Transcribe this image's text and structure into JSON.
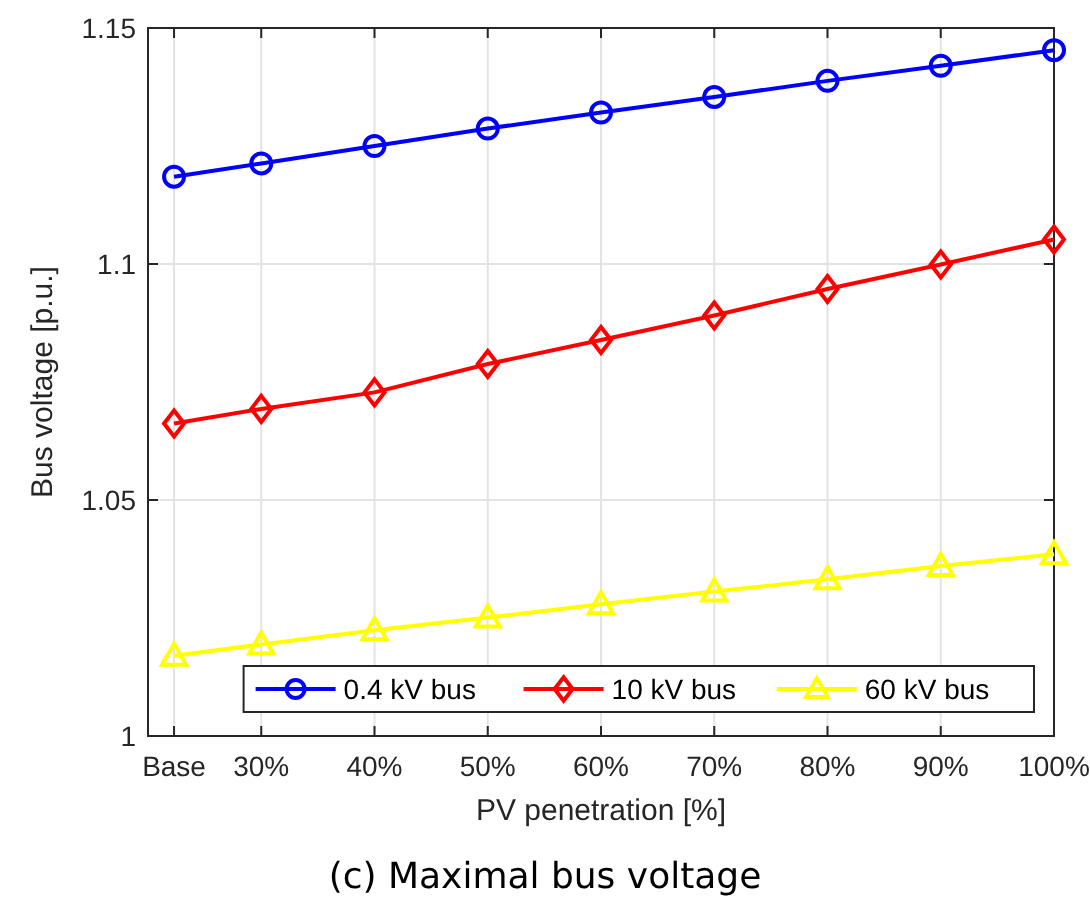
{
  "chart_data": {
    "type": "line",
    "title": "(c) Maximal bus voltage",
    "xlabel": "PV penetration [%]",
    "ylabel": "Bus voltage [p.u.]",
    "x": [
      22.3,
      30,
      40,
      50,
      60,
      70,
      80,
      90,
      100
    ],
    "xlim": [
      20,
      100
    ],
    "xticks": [
      {
        "value": 22.3,
        "label": "Base"
      },
      {
        "value": 30,
        "label": "30%"
      },
      {
        "value": 40,
        "label": "40%"
      },
      {
        "value": 50,
        "label": "50%"
      },
      {
        "value": 60,
        "label": "60%"
      },
      {
        "value": 70,
        "label": "70%"
      },
      {
        "value": 80,
        "label": "80%"
      },
      {
        "value": 90,
        "label": "90%"
      },
      {
        "value": 100,
        "label": "100%"
      }
    ],
    "ylim": [
      1,
      1.15
    ],
    "yticks": [
      1,
      1.05,
      1.1,
      1.15
    ],
    "grid": true,
    "legend": "bottom right",
    "line_style": "solid",
    "series": [
      {
        "name": "0.4 kV bus",
        "color": "#0000ff",
        "marker": "circle",
        "values": [
          1.1185,
          1.1213,
          1.125,
          1.1287,
          1.1321,
          1.1354,
          1.1388,
          1.142,
          1.1453
        ]
      },
      {
        "name": "10 kV bus",
        "color": "#ff0000",
        "marker": "diamond",
        "values": [
          1.0662,
          1.0693,
          1.0728,
          1.0788,
          1.0839,
          1.0891,
          1.0947,
          1.0999,
          1.1052
        ]
      },
      {
        "name": "60 kV bus",
        "color": "#ffff00",
        "marker": "triangle",
        "values": [
          1.017,
          1.0194,
          1.0224,
          1.0251,
          1.0279,
          1.0306,
          1.0332,
          1.036,
          1.0385
        ]
      }
    ]
  }
}
